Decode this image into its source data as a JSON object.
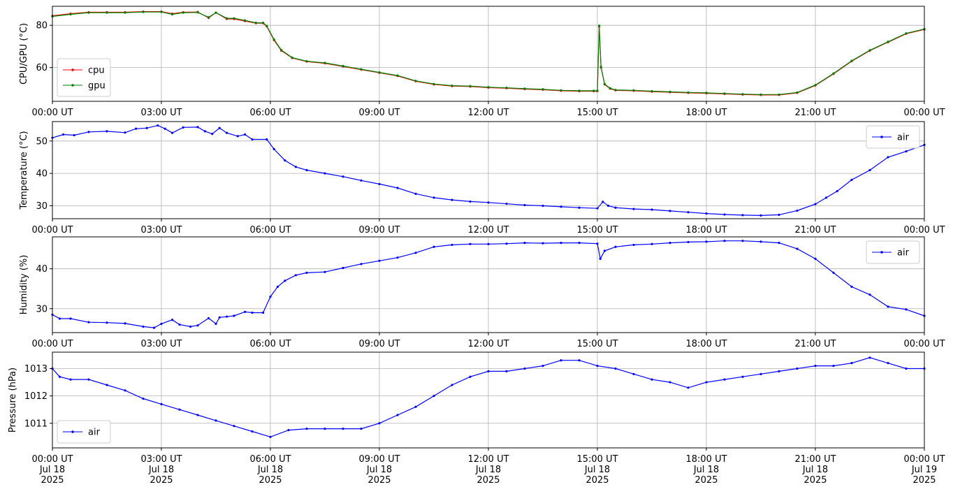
{
  "chart_data": [
    {
      "type": "line",
      "ylabel": "CPU/GPU (°C)",
      "ylim": [
        44,
        89
      ],
      "yticks": [
        60,
        80
      ],
      "grid": true,
      "legend": "lower-left",
      "xtick_labels": [
        "00:00 UT",
        "03:00 UT",
        "06:00 UT",
        "09:00 UT",
        "12:00 UT",
        "15:00 UT",
        "18:00 UT",
        "21:00 UT",
        "00:00 UT"
      ],
      "series": [
        {
          "name": "cpu",
          "color": "#ff0000",
          "x": [
            0,
            0.5,
            1,
            1.5,
            2,
            2.5,
            3,
            3.3,
            3.6,
            4,
            4.3,
            4.5,
            4.8,
            5,
            5.3,
            5.6,
            5.8,
            5.9,
            6.1,
            6.3,
            6.6,
            7,
            7.5,
            8,
            8.5,
            9,
            9.5,
            10,
            10.5,
            11,
            11.5,
            12,
            12.5,
            13,
            13.5,
            14,
            14.5,
            14.9,
            15.0,
            15.05,
            15.1,
            15.2,
            15.35,
            15.5,
            16,
            16.5,
            17,
            17.5,
            18,
            18.5,
            19,
            19.5,
            20,
            20.5,
            21,
            21.5,
            22,
            22.5,
            23,
            23.5,
            24
          ],
          "y": [
            84.5,
            85.5,
            86.2,
            86.2,
            86.2,
            86.5,
            86.5,
            85.5,
            86.2,
            86.3,
            83.5,
            86,
            83,
            83,
            82,
            81,
            81,
            79.5,
            73,
            68,
            64.5,
            62.8,
            62,
            60.5,
            59,
            57.5,
            56,
            53.5,
            52,
            51.2,
            51,
            50.5,
            50.2,
            49.8,
            49.5,
            49,
            48.8,
            48.8,
            48.8,
            79.5,
            60,
            52,
            50,
            49.2,
            49,
            48.6,
            48.3,
            48,
            47.8,
            47.5,
            47.2,
            47,
            47,
            48,
            51.5,
            57,
            63,
            68,
            72,
            76,
            78
          ]
        },
        {
          "name": "gpu",
          "color": "#008000",
          "x": [
            0,
            0.5,
            1,
            1.5,
            2,
            2.5,
            3,
            3.3,
            3.6,
            4,
            4.3,
            4.5,
            4.8,
            5,
            5.3,
            5.6,
            5.8,
            5.9,
            6.1,
            6.3,
            6.6,
            7,
            7.5,
            8,
            8.5,
            9,
            9.5,
            10,
            10.5,
            11,
            11.5,
            12,
            12.5,
            13,
            13.5,
            14,
            14.5,
            14.9,
            15.0,
            15.05,
            15.1,
            15.2,
            15.35,
            15.5,
            16,
            16.5,
            17,
            17.5,
            18,
            18.5,
            19,
            19.5,
            20,
            20.5,
            21,
            21.5,
            22,
            22.5,
            23,
            23.5,
            24
          ],
          "y": [
            84.2,
            85.2,
            86,
            86,
            86,
            86.3,
            86.3,
            85.2,
            86,
            86.1,
            83.8,
            86,
            83.3,
            83.3,
            82.3,
            81.2,
            81.2,
            79.7,
            73.3,
            68.3,
            64.7,
            63,
            62.2,
            60.7,
            59.2,
            57.7,
            56.2,
            53.7,
            52.2,
            51.4,
            51.2,
            50.7,
            50.4,
            50,
            49.7,
            49.2,
            49,
            49,
            49,
            79.8,
            60.3,
            52.2,
            50.2,
            49.4,
            49.2,
            48.8,
            48.5,
            48.2,
            48,
            47.7,
            47.4,
            47.2,
            47.2,
            48.2,
            51.7,
            57.2,
            63.2,
            68.2,
            72.2,
            76.2,
            78.2
          ]
        }
      ]
    },
    {
      "type": "line",
      "ylabel": "Temperature (°C)",
      "ylim": [
        26,
        56
      ],
      "yticks": [
        30,
        40,
        50
      ],
      "grid": true,
      "legend": "upper-right",
      "xtick_labels": [
        "00:00 UT",
        "03:00 UT",
        "06:00 UT",
        "09:00 UT",
        "12:00 UT",
        "15:00 UT",
        "18:00 UT",
        "21:00 UT",
        "00:00 UT"
      ],
      "series": [
        {
          "name": "air",
          "color": "#0000ff",
          "x": [
            0,
            0.3,
            0.6,
            1,
            1.5,
            2,
            2.3,
            2.6,
            2.9,
            3.1,
            3.3,
            3.6,
            4,
            4.2,
            4.4,
            4.6,
            4.8,
            5.1,
            5.3,
            5.5,
            5.9,
            6.1,
            6.4,
            6.7,
            7,
            7.5,
            8,
            8.5,
            9,
            9.5,
            10,
            10.5,
            11,
            11.5,
            12,
            12.5,
            13,
            13.5,
            14,
            14.5,
            15,
            15.15,
            15.3,
            15.5,
            16,
            16.5,
            17,
            17.5,
            18,
            18.5,
            19,
            19.5,
            20,
            20.5,
            21,
            21.3,
            21.6,
            22,
            22.5,
            23,
            23.5,
            24
          ],
          "y": [
            51,
            52,
            51.8,
            52.8,
            53,
            52.6,
            53.8,
            54,
            54.8,
            53.8,
            52.5,
            54.2,
            54.3,
            53,
            52.2,
            54,
            52.5,
            51.5,
            52,
            50.5,
            50.5,
            47.5,
            44,
            42,
            41,
            40,
            39,
            37.8,
            36.7,
            35.5,
            33.7,
            32.5,
            31.8,
            31.3,
            31,
            30.6,
            30.2,
            30,
            29.7,
            29.4,
            29.2,
            31.2,
            30,
            29.4,
            29,
            28.8,
            28.4,
            28,
            27.6,
            27.3,
            27.1,
            27,
            27.2,
            28.5,
            30.5,
            32.5,
            34.5,
            38,
            41,
            45,
            46.8,
            48.8
          ]
        }
      ]
    },
    {
      "type": "line",
      "ylabel": "Humidity (%)",
      "ylim": [
        24,
        48
      ],
      "yticks": [
        30,
        40
      ],
      "grid": true,
      "legend": "upper-right",
      "xtick_labels": [
        "00:00 UT",
        "03:00 UT",
        "06:00 UT",
        "09:00 UT",
        "12:00 UT",
        "15:00 UT",
        "18:00 UT",
        "21:00 UT",
        "00:00 UT"
      ],
      "series": [
        {
          "name": "air",
          "color": "#0000ff",
          "x": [
            0,
            0.2,
            0.5,
            1,
            1.5,
            2,
            2.5,
            2.8,
            3.0,
            3.3,
            3.5,
            3.8,
            4.0,
            4.3,
            4.5,
            4.6,
            4.8,
            5.0,
            5.3,
            5.5,
            5.8,
            6.0,
            6.2,
            6.4,
            6.7,
            7,
            7.5,
            8,
            8.5,
            9,
            9.5,
            10,
            10.5,
            11,
            11.5,
            12,
            12.5,
            13,
            13.5,
            14,
            14.5,
            15,
            15.08,
            15.2,
            15.5,
            16,
            16.5,
            17,
            17.5,
            18,
            18.5,
            19,
            19.5,
            20,
            20.5,
            21,
            21.5,
            22,
            22.5,
            23,
            23.5,
            24
          ],
          "y": [
            28.5,
            27.5,
            27.5,
            26.6,
            26.5,
            26.3,
            25.5,
            25.2,
            26.2,
            27.2,
            26,
            25.5,
            25.8,
            27.6,
            26.2,
            27.8,
            28,
            28.2,
            29.2,
            29,
            29,
            33,
            35.5,
            37,
            38.4,
            39,
            39.2,
            40.2,
            41.2,
            42,
            42.8,
            44,
            45.5,
            46,
            46.2,
            46.2,
            46.3,
            46.5,
            46.4,
            46.5,
            46.5,
            46.3,
            42.5,
            44.5,
            45.5,
            46,
            46.2,
            46.5,
            46.7,
            46.8,
            47,
            47,
            46.8,
            46.5,
            45,
            42.5,
            39,
            35.5,
            33.5,
            30.5,
            29.8,
            28.2
          ]
        }
      ]
    },
    {
      "type": "line",
      "ylabel": "Pressure (hPa)",
      "ylim": [
        1010.1,
        1013.6
      ],
      "yticks": [
        1011,
        1012,
        1013
      ],
      "grid": true,
      "legend": "lower-left",
      "xtick_labels": [
        "00:00 UT\nJul 18\n2025",
        "03:00 UT\nJul 18\n2025",
        "06:00 UT\nJul 18\n2025",
        "09:00 UT\nJul 18\n2025",
        "12:00 UT\nJul 18\n2025",
        "15:00 UT\nJul 18\n2025",
        "18:00 UT\nJul 18\n2025",
        "21:00 UT\nJul 18\n2025",
        "00:00 UT\nJul 19\n2025"
      ],
      "series": [
        {
          "name": "air",
          "color": "#0000ff",
          "x": [
            0,
            0.2,
            0.5,
            1,
            1.5,
            2,
            2.5,
            3,
            3.5,
            4,
            4.5,
            5,
            5.5,
            6,
            6.5,
            7,
            7.5,
            8,
            8.5,
            9,
            9.5,
            10,
            10.5,
            11,
            11.5,
            12,
            12.5,
            13,
            13.5,
            14,
            14.5,
            15,
            15.5,
            16,
            16.5,
            17,
            17.5,
            18,
            18.5,
            19,
            19.5,
            20,
            20.5,
            21,
            21.5,
            22,
            22.5,
            23,
            23.5,
            24
          ],
          "y": [
            1013,
            1012.7,
            1012.6,
            1012.6,
            1012.4,
            1012.2,
            1011.9,
            1011.7,
            1011.5,
            1011.3,
            1011.1,
            1010.9,
            1010.7,
            1010.5,
            1010.75,
            1010.8,
            1010.8,
            1010.8,
            1010.8,
            1011,
            1011.3,
            1011.6,
            1012,
            1012.4,
            1012.7,
            1012.9,
            1012.9,
            1013,
            1013.1,
            1013.3,
            1013.3,
            1013.1,
            1013,
            1012.8,
            1012.6,
            1012.5,
            1012.3,
            1012.5,
            1012.6,
            1012.7,
            1012.8,
            1012.9,
            1013,
            1013.1,
            1013.1,
            1013.2,
            1013.4,
            1013.2,
            1013,
            1013
          ]
        }
      ]
    }
  ]
}
